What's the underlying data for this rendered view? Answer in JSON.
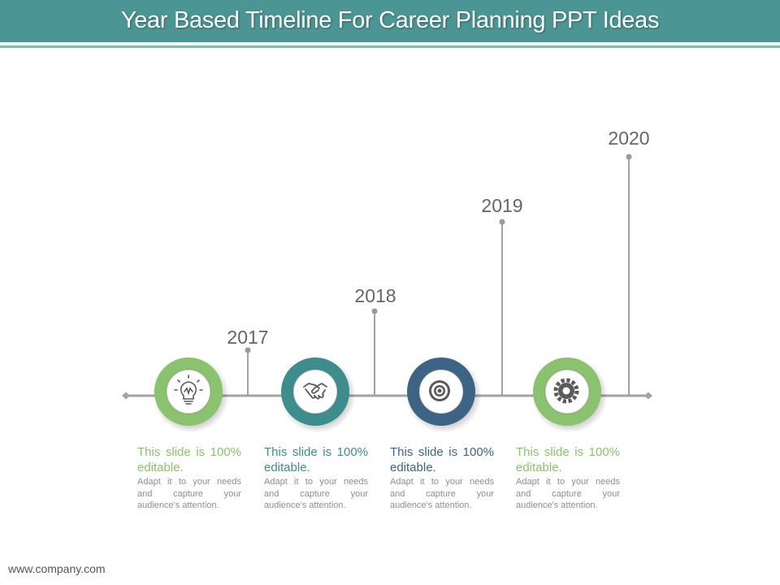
{
  "title": "Year Based Timeline For Career Planning PPT Ideas",
  "milestones": [
    {
      "year": "2017",
      "icon": "lightbulb-icon",
      "color": "#8bc26d",
      "heading": "This slide is 100% editable.",
      "body": "Adapt it to your needs and capture your audience's attention."
    },
    {
      "year": "2018",
      "icon": "handshake-icon",
      "color": "#3e8d8d",
      "heading": "This slide is 100% editable.",
      "body": "Adapt it to your needs and capture your audience's attention."
    },
    {
      "year": "2019",
      "icon": "target-icon",
      "color": "#3d6385",
      "heading": "This slide is 100% editable.",
      "body": "Adapt it to your needs and capture your audience's attention."
    },
    {
      "year": "2020",
      "icon": "gear-icon",
      "color": "#8bc26d",
      "heading": "This slide is 100% editable.",
      "body": "Adapt it to your needs and capture your audience's attention."
    }
  ],
  "footer": "www.company.com"
}
